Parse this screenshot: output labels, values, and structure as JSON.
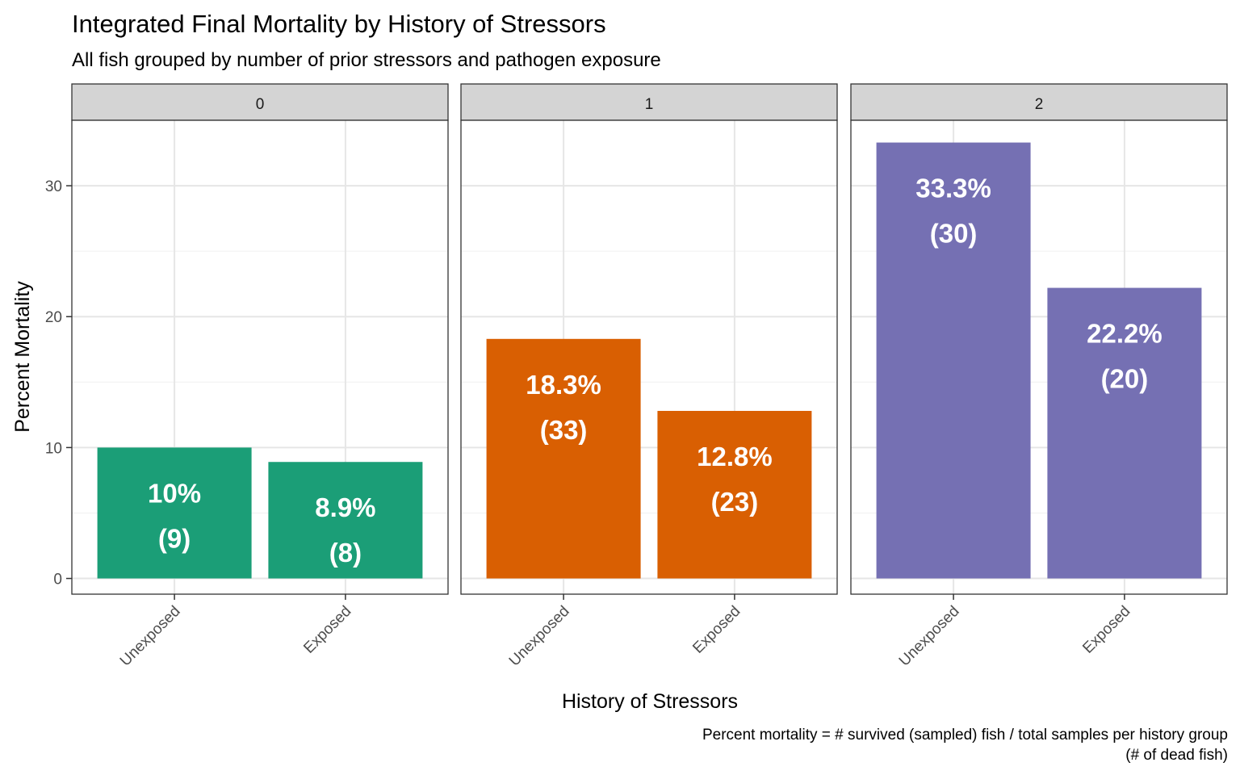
{
  "chart_data": {
    "type": "bar",
    "title": "Integrated Final Mortality by History of Stressors",
    "subtitle": "All fish grouped by number of prior stressors and pathogen exposure",
    "xlabel": "History of Stressors",
    "ylabel": "Percent Mortality",
    "caption_lines": [
      "Percent mortality = # survived (sampled) fish / total samples per history group",
      "(# of dead fish)"
    ],
    "ylim": [
      -1.2,
      35
    ],
    "yticks": [
      0,
      10,
      20,
      30
    ],
    "grid": true,
    "legend": "none",
    "categories": [
      "Unexposed",
      "Exposed"
    ],
    "facets": [
      {
        "label": "0",
        "color": "#1b9e77",
        "bars": [
          {
            "category": "Unexposed",
            "value": 10.0,
            "pct_label": "10%",
            "count_label": "(9)"
          },
          {
            "category": "Exposed",
            "value": 8.9,
            "pct_label": "8.9%",
            "count_label": "(8)"
          }
        ]
      },
      {
        "label": "1",
        "color": "#d95f02",
        "bars": [
          {
            "category": "Unexposed",
            "value": 18.3,
            "pct_label": "18.3%",
            "count_label": "(33)"
          },
          {
            "category": "Exposed",
            "value": 12.8,
            "pct_label": "12.8%",
            "count_label": "(23)"
          }
        ]
      },
      {
        "label": "2",
        "color": "#7570b3",
        "bars": [
          {
            "category": "Unexposed",
            "value": 33.3,
            "pct_label": "33.3%",
            "count_label": "(30)"
          },
          {
            "category": "Exposed",
            "value": 22.2,
            "pct_label": "22.2%",
            "count_label": "(20)"
          }
        ]
      }
    ]
  }
}
